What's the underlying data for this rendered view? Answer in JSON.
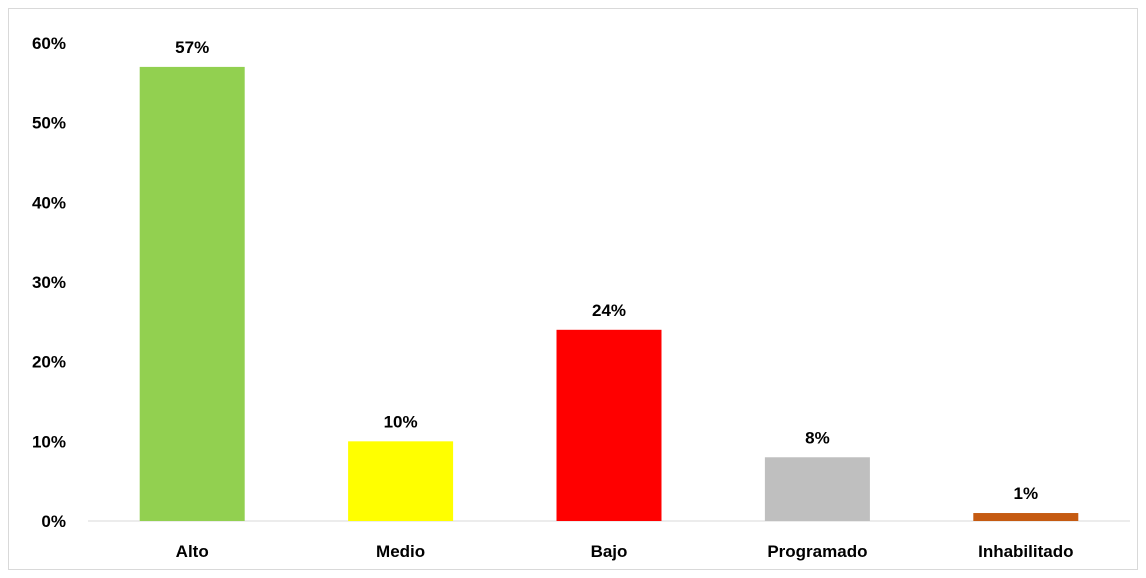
{
  "chart_data": {
    "type": "bar",
    "categories": [
      "Alto",
      "Medio",
      "Bajo",
      "Programado",
      "Inhabilitado"
    ],
    "values": [
      57,
      10,
      24,
      8,
      1
    ],
    "data_labels": [
      "57%",
      "10%",
      "24%",
      "8%",
      "1%"
    ],
    "colors": [
      "#92d050",
      "#ffff00",
      "#ff0000",
      "#bfbfbf",
      "#c55a11"
    ],
    "ylim": [
      0,
      60
    ],
    "yticks": [
      0,
      10,
      20,
      30,
      40,
      50,
      60
    ],
    "ytick_labels": [
      "0%",
      "10%",
      "20%",
      "30%",
      "40%",
      "50%",
      "60%"
    ],
    "grid": false,
    "title": "",
    "xlabel": "",
    "ylabel": ""
  }
}
